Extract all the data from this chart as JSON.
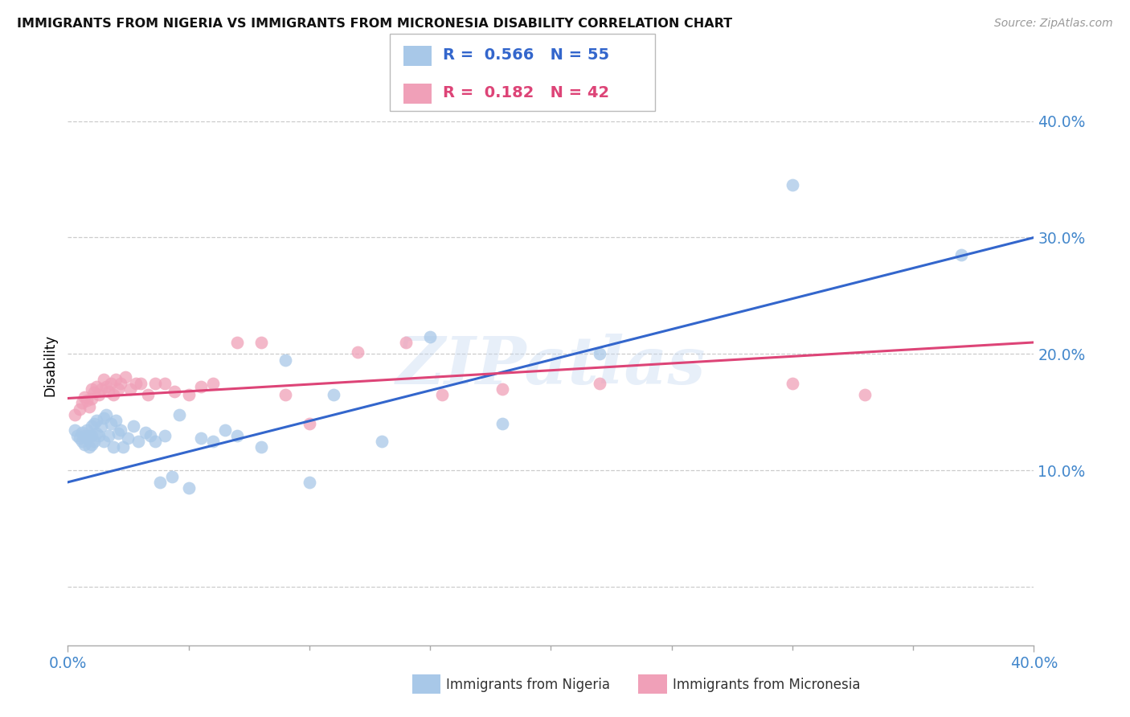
{
  "title": "IMMIGRANTS FROM NIGERIA VS IMMIGRANTS FROM MICRONESIA DISABILITY CORRELATION CHART",
  "source": "Source: ZipAtlas.com",
  "ylabel": "Disability",
  "xlim": [
    0.0,
    0.4
  ],
  "ylim": [
    -0.05,
    0.43
  ],
  "yticks": [
    0.0,
    0.1,
    0.2,
    0.3,
    0.4
  ],
  "ytick_labels": [
    "",
    "10.0%",
    "20.0%",
    "30.0%",
    "40.0%"
  ],
  "nigeria_color": "#a8c8e8",
  "micronesia_color": "#f0a0b8",
  "nigeria_line_color": "#3366cc",
  "micronesia_line_color": "#dd4477",
  "nigeria_R": 0.566,
  "nigeria_N": 55,
  "micronesia_R": 0.182,
  "micronesia_N": 42,
  "watermark": "ZIPatlas",
  "axis_color": "#4488cc",
  "nigeria_x": [
    0.003,
    0.004,
    0.005,
    0.006,
    0.006,
    0.007,
    0.007,
    0.008,
    0.008,
    0.009,
    0.009,
    0.01,
    0.01,
    0.01,
    0.011,
    0.011,
    0.012,
    0.012,
    0.013,
    0.014,
    0.015,
    0.015,
    0.016,
    0.017,
    0.018,
    0.019,
    0.02,
    0.021,
    0.022,
    0.023,
    0.025,
    0.027,
    0.029,
    0.032,
    0.034,
    0.036,
    0.038,
    0.04,
    0.043,
    0.046,
    0.05,
    0.055,
    0.06,
    0.065,
    0.07,
    0.08,
    0.09,
    0.1,
    0.11,
    0.13,
    0.15,
    0.18,
    0.22,
    0.3,
    0.37
  ],
  "nigeria_y": [
    0.135,
    0.13,
    0.128,
    0.133,
    0.125,
    0.13,
    0.122,
    0.135,
    0.128,
    0.13,
    0.12,
    0.138,
    0.13,
    0.122,
    0.14,
    0.125,
    0.143,
    0.132,
    0.13,
    0.138,
    0.145,
    0.125,
    0.148,
    0.13,
    0.14,
    0.12,
    0.143,
    0.132,
    0.135,
    0.12,
    0.128,
    0.138,
    0.125,
    0.133,
    0.13,
    0.125,
    0.09,
    0.13,
    0.095,
    0.148,
    0.085,
    0.128,
    0.125,
    0.135,
    0.13,
    0.12,
    0.195,
    0.09,
    0.165,
    0.125,
    0.215,
    0.14,
    0.2,
    0.345,
    0.285
  ],
  "micronesia_x": [
    0.003,
    0.005,
    0.006,
    0.007,
    0.008,
    0.009,
    0.01,
    0.01,
    0.011,
    0.012,
    0.013,
    0.014,
    0.015,
    0.016,
    0.017,
    0.018,
    0.019,
    0.02,
    0.021,
    0.022,
    0.024,
    0.026,
    0.028,
    0.03,
    0.033,
    0.036,
    0.04,
    0.044,
    0.05,
    0.055,
    0.06,
    0.07,
    0.08,
    0.09,
    0.1,
    0.12,
    0.14,
    0.155,
    0.18,
    0.22,
    0.3,
    0.33
  ],
  "micronesia_y": [
    0.148,
    0.153,
    0.158,
    0.163,
    0.16,
    0.155,
    0.17,
    0.162,
    0.167,
    0.172,
    0.165,
    0.17,
    0.178,
    0.172,
    0.168,
    0.175,
    0.165,
    0.178,
    0.17,
    0.175,
    0.18,
    0.17,
    0.175,
    0.175,
    0.165,
    0.175,
    0.175,
    0.168,
    0.165,
    0.172,
    0.175,
    0.21,
    0.21,
    0.165,
    0.14,
    0.202,
    0.21,
    0.165,
    0.17,
    0.175,
    0.175,
    0.165
  ],
  "nigeria_line_x0": 0.0,
  "nigeria_line_y0": 0.09,
  "nigeria_line_x1": 0.4,
  "nigeria_line_y1": 0.3,
  "micronesia_line_x0": 0.0,
  "micronesia_line_y0": 0.162,
  "micronesia_line_x1": 0.4,
  "micronesia_line_y1": 0.21
}
